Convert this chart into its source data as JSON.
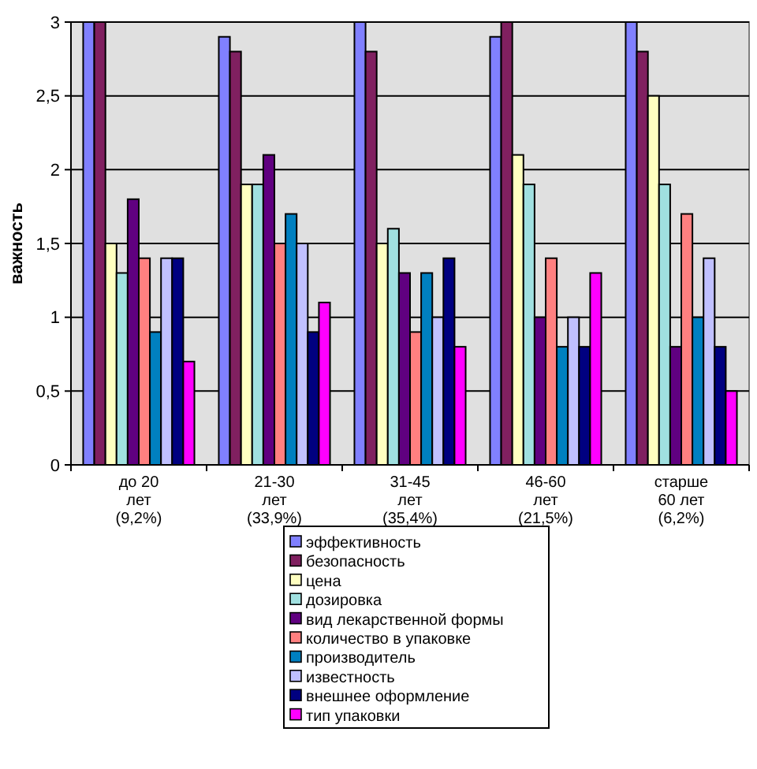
{
  "chart_data": {
    "type": "bar",
    "ylabel": "важность",
    "categories": [
      "до 20\nлет\n(9,2%)",
      "21-30\nлет\n(33,9%)",
      "31-45\nлет\n(35,4%)",
      "46-60\nлет\n(21,5%)",
      "старше\n60 лет\n(6,2%)"
    ],
    "series": [
      {
        "name": "эффективность",
        "color": "#8080ff",
        "values": [
          3,
          2.9,
          3,
          2.9,
          3
        ]
      },
      {
        "name": "безопасность",
        "color": "#802060",
        "values": [
          3,
          2.8,
          2.8,
          3,
          2.8
        ]
      },
      {
        "name": "цена",
        "color": "#ffffc0",
        "values": [
          1.5,
          1.9,
          1.5,
          2.1,
          2.5
        ]
      },
      {
        "name": "дозировка",
        "color": "#a0e0e0",
        "values": [
          1.3,
          1.9,
          1.6,
          1.9,
          1.9
        ]
      },
      {
        "name": "вид лекарственной формы",
        "color": "#600080",
        "values": [
          1.8,
          2.1,
          1.3,
          1.0,
          0.8
        ]
      },
      {
        "name": "количество в упаковке",
        "color": "#ff8080",
        "values": [
          1.4,
          1.5,
          0.9,
          1.4,
          1.7
        ]
      },
      {
        "name": "производитель",
        "color": "#0080c0",
        "values": [
          0.9,
          1.7,
          1.3,
          0.8,
          1.0
        ]
      },
      {
        "name": "известность",
        "color": "#c0c0ff",
        "values": [
          1.4,
          1.5,
          1.0,
          1.0,
          1.4
        ]
      },
      {
        "name": "внешнее оформление",
        "color": "#000080",
        "values": [
          1.4,
          0.9,
          1.4,
          0.8,
          0.8
        ]
      },
      {
        "name": "тип упаковки",
        "color": "#ff00ff",
        "values": [
          0.7,
          1.1,
          0.8,
          1.3,
          0.5
        ]
      }
    ],
    "ylim": [
      0,
      3
    ],
    "yticks": [
      0,
      {
        "value": 0.5,
        "label": "0,5"
      },
      1,
      {
        "value": 1.5,
        "label": "1,5"
      },
      2,
      {
        "value": 2.5,
        "label": "2,5"
      },
      3
    ],
    "grid": "y",
    "legend": "bottom"
  }
}
